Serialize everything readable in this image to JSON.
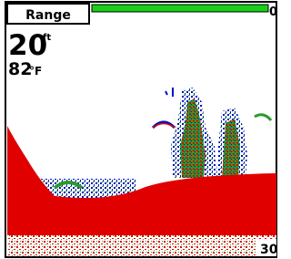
{
  "range_button": "Range",
  "scale_top": "0",
  "depth": "20",
  "depth_unit": "ft",
  "water_temp": "82",
  "temp_unit": "°F",
  "scale_bottom": "30"
}
